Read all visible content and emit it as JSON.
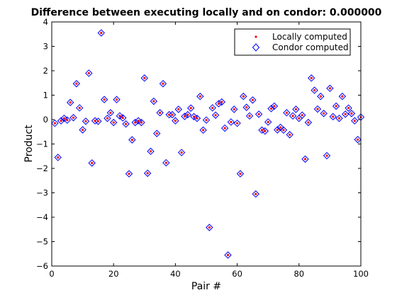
{
  "chart_data": {
    "type": "scatter",
    "title": "Difference between executing locally and on condor: 0.000000",
    "xlabel": "Pair #",
    "ylabel": "Product",
    "xlim": [
      0,
      100
    ],
    "ylim": [
      -6,
      4
    ],
    "x_ticks": [
      0,
      20,
      40,
      60,
      80,
      100
    ],
    "x_tick_labels": [
      "0",
      "20",
      "40",
      "60",
      "80",
      "100"
    ],
    "y_ticks": [
      -6,
      -5,
      -4,
      -3,
      -2,
      -1,
      0,
      1,
      2,
      3,
      4
    ],
    "y_tick_labels": [
      "−6",
      "−5",
      "−4",
      "−3",
      "−2",
      "−1",
      "0",
      "1",
      "2",
      "3",
      "4"
    ],
    "grid": false,
    "legend_position": "top-right",
    "x": [
      1,
      2,
      3,
      4,
      5,
      6,
      7,
      8,
      9,
      10,
      11,
      12,
      13,
      14,
      15,
      16,
      17,
      18,
      19,
      20,
      21,
      22,
      23,
      24,
      25,
      26,
      27,
      28,
      29,
      30,
      31,
      32,
      33,
      34,
      35,
      36,
      37,
      38,
      39,
      40,
      41,
      42,
      43,
      44,
      45,
      46,
      47,
      48,
      49,
      50,
      51,
      52,
      53,
      54,
      55,
      56,
      57,
      58,
      59,
      60,
      61,
      62,
      63,
      64,
      65,
      66,
      67,
      68,
      69,
      70,
      71,
      72,
      73,
      74,
      75,
      76,
      77,
      78,
      79,
      80,
      81,
      82,
      83,
      84,
      85,
      86,
      87,
      88,
      89,
      90,
      91,
      92,
      93,
      94,
      95,
      96,
      97,
      98,
      99,
      100
    ],
    "series": [
      {
        "name": "Locally computed",
        "marker": "dot",
        "color": "#ff0000",
        "values": [
          -0.15,
          -1.55,
          -0.05,
          0.05,
          -0.02,
          0.7,
          0.08,
          1.47,
          0.48,
          -0.42,
          -0.07,
          1.9,
          -1.78,
          -0.05,
          -0.07,
          3.55,
          0.82,
          0.05,
          0.28,
          -0.12,
          0.82,
          0.15,
          0.07,
          -0.18,
          -2.22,
          -0.83,
          -0.12,
          -0.05,
          -0.12,
          1.7,
          -2.2,
          -1.3,
          0.75,
          -0.57,
          0.28,
          1.47,
          -1.77,
          0.2,
          0.2,
          -0.05,
          0.42,
          -1.35,
          0.13,
          0.2,
          0.47,
          0.12,
          0.05,
          0.95,
          -0.43,
          -0.02,
          -4.42,
          0.48,
          0.18,
          0.65,
          0.72,
          -0.35,
          -5.55,
          -0.1,
          0.42,
          -0.15,
          -2.22,
          0.95,
          0.5,
          0.15,
          0.8,
          -3.05,
          0.22,
          -0.43,
          -0.47,
          -0.1,
          0.45,
          0.55,
          -0.42,
          -0.32,
          -0.43,
          0.28,
          -0.62,
          0.15,
          0.42,
          0.05,
          0.18,
          -1.62,
          -0.12,
          1.7,
          1.2,
          0.43,
          0.95,
          0.25,
          -1.48,
          1.28,
          0.12,
          0.55,
          0.05,
          0.95,
          0.22,
          0.47,
          0.25,
          -0.05,
          -0.82,
          0.1
        ]
      },
      {
        "name": "Condor computed",
        "marker": "diamond",
        "color": "#0000ff",
        "values": [
          -0.15,
          -1.55,
          -0.05,
          0.05,
          -0.02,
          0.7,
          0.08,
          1.47,
          0.48,
          -0.42,
          -0.07,
          1.9,
          -1.78,
          -0.05,
          -0.07,
          3.55,
          0.82,
          0.05,
          0.28,
          -0.12,
          0.82,
          0.15,
          0.07,
          -0.18,
          -2.22,
          -0.83,
          -0.12,
          -0.05,
          -0.12,
          1.7,
          -2.2,
          -1.3,
          0.75,
          -0.57,
          0.28,
          1.47,
          -1.77,
          0.2,
          0.2,
          -0.05,
          0.42,
          -1.35,
          0.13,
          0.2,
          0.47,
          0.12,
          0.05,
          0.95,
          -0.43,
          -0.02,
          -4.42,
          0.48,
          0.18,
          0.65,
          0.72,
          -0.35,
          -5.55,
          -0.1,
          0.42,
          -0.15,
          -2.22,
          0.95,
          0.5,
          0.15,
          0.8,
          -3.05,
          0.22,
          -0.43,
          -0.47,
          -0.1,
          0.45,
          0.55,
          -0.42,
          -0.32,
          -0.43,
          0.28,
          -0.62,
          0.15,
          0.42,
          0.05,
          0.18,
          -1.62,
          -0.12,
          1.7,
          1.2,
          0.43,
          0.95,
          0.25,
          -1.48,
          1.28,
          0.12,
          0.55,
          0.05,
          0.95,
          0.22,
          0.47,
          0.25,
          -0.05,
          -0.82,
          0.1
        ]
      }
    ]
  }
}
